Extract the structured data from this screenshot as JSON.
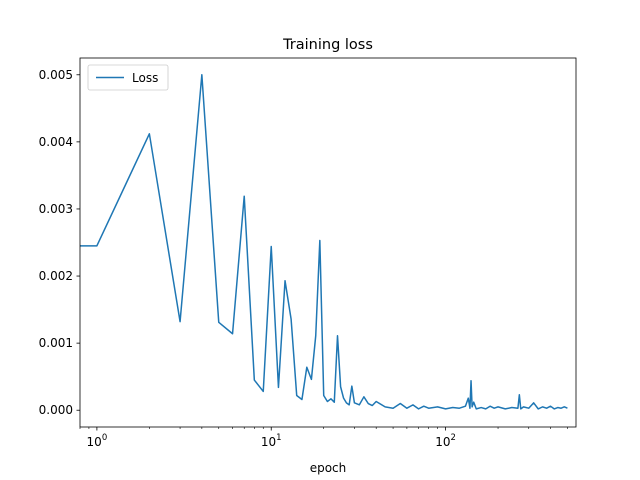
{
  "chart_data": {
    "type": "line",
    "title": "Training loss",
    "xlabel": "epoch",
    "ylabel": "",
    "xscale": "log",
    "xlim": [
      0.8,
      560
    ],
    "ylim": [
      -0.00025,
      0.00525
    ],
    "x_tick_labels": [
      {
        "value": 1,
        "base": "10",
        "exp": "0"
      },
      {
        "value": 10,
        "base": "10",
        "exp": "1"
      },
      {
        "value": 100,
        "base": "10",
        "exp": "2"
      }
    ],
    "y_ticks": [
      0.0,
      0.001,
      0.002,
      0.003,
      0.004,
      0.005
    ],
    "y_tick_labels": [
      "0.000",
      "0.001",
      "0.002",
      "0.003",
      "0.004",
      "0.005"
    ],
    "grid": false,
    "legend": {
      "position": "top-left",
      "entries": [
        "Loss"
      ]
    },
    "colors": {
      "series": "#1f77b4",
      "axes": "#000000",
      "legend_border": "#cccccc"
    },
    "series": [
      {
        "name": "Loss",
        "x": [
          0.8,
          1,
          2,
          3,
          4,
          5,
          6,
          7,
          8,
          9,
          10,
          11,
          12,
          13,
          14,
          15,
          16,
          17,
          18,
          19,
          20,
          21,
          22,
          23,
          24,
          25,
          26,
          27,
          28,
          29,
          30,
          32,
          34,
          36,
          38,
          40,
          45,
          50,
          55,
          60,
          65,
          70,
          75,
          80,
          90,
          100,
          110,
          120,
          130,
          135,
          138,
          140,
          142,
          145,
          150,
          160,
          170,
          180,
          190,
          200,
          220,
          240,
          260,
          265,
          270,
          280,
          300,
          320,
          340,
          360,
          380,
          400,
          420,
          440,
          460,
          480,
          500
        ],
        "y": [
          0.00245,
          0.00245,
          0.00412,
          0.00132,
          0.005,
          0.00131,
          0.00114,
          0.00319,
          0.00045,
          0.00028,
          0.00244,
          0.00034,
          0.00193,
          0.00136,
          0.00022,
          0.00016,
          0.00064,
          0.00046,
          0.00111,
          0.00253,
          0.00022,
          0.00013,
          0.00017,
          0.00012,
          0.00111,
          0.00035,
          0.00018,
          0.00011,
          8e-05,
          0.00036,
          0.00011,
          8e-05,
          0.0002,
          0.0001,
          7e-05,
          0.00013,
          5e-05,
          3e-05,
          0.0001,
          3e-05,
          8e-05,
          2e-05,
          6e-05,
          3e-05,
          5e-05,
          2e-05,
          4e-05,
          3e-05,
          6e-05,
          0.00018,
          3e-05,
          0.00044,
          5e-05,
          0.00012,
          2e-05,
          4e-05,
          2e-05,
          6e-05,
          3e-05,
          5e-05,
          2e-05,
          4e-05,
          3e-05,
          0.00023,
          2e-05,
          5e-05,
          3e-05,
          0.00011,
          2e-05,
          5e-05,
          3e-05,
          6e-05,
          2e-05,
          4e-05,
          3e-05,
          5e-05,
          3e-05
        ]
      }
    ]
  }
}
